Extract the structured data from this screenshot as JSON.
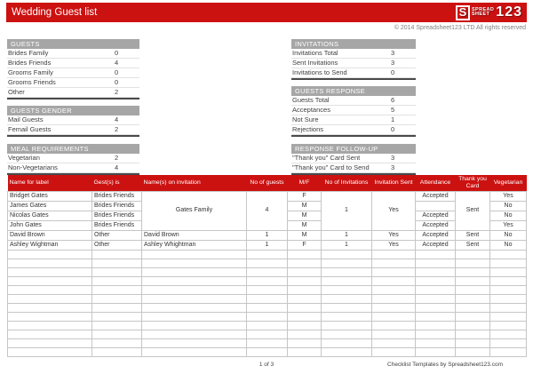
{
  "header": {
    "title": "Wedding Guest list",
    "logo": {
      "s": "S",
      "spread": "SPREAD",
      "sheet": "SHEET",
      "num": "123"
    },
    "copyright": "© 2014 Spreadsheet123 LTD All rights reserved"
  },
  "colors": {
    "accent_red": "#cc1111",
    "section_gray": "#a6a6a6"
  },
  "summary_left": [
    {
      "title": "GUESTS",
      "rows": [
        {
          "label": "Brides Family",
          "value": "0"
        },
        {
          "label": "Brides Friends",
          "value": "4"
        },
        {
          "label": "Grooms Family",
          "value": "0"
        },
        {
          "label": "Grooms Friends",
          "value": "0"
        },
        {
          "label": "Other",
          "value": "2"
        }
      ]
    },
    {
      "title": "GUESTS GENDER",
      "rows": [
        {
          "label": "Mail Guests",
          "value": "4"
        },
        {
          "label": "Femail Guests",
          "value": "2"
        }
      ]
    },
    {
      "title": "MEAL REQUIREMENTS",
      "rows": [
        {
          "label": "Vegetarian",
          "value": "2"
        },
        {
          "label": "Non-Vegetarians",
          "value": "4"
        }
      ]
    }
  ],
  "summary_right": [
    {
      "title": "INVITATIONS",
      "rows": [
        {
          "label": "Invitations Total",
          "value": "3"
        },
        {
          "label": "Sent Invitations",
          "value": "3"
        },
        {
          "label": "Invitations to Send",
          "value": "0"
        }
      ]
    },
    {
      "title": "GUESTS RESPONSE",
      "rows": [
        {
          "label": "Guests Total",
          "value": "6"
        },
        {
          "label": "Acceptances",
          "value": "5"
        },
        {
          "label": "Not Sure",
          "value": "1"
        },
        {
          "label": "Rejections",
          "value": "0"
        }
      ]
    },
    {
      "title": "RESPONSE FOLLOW-UP",
      "rows": [
        {
          "label": "\"Thank you\" Card Sent",
          "value": "3"
        },
        {
          "label": "\"Thank you\" Card to Send",
          "value": "3"
        }
      ]
    }
  ],
  "table": {
    "columns": [
      "Name for label",
      "Gest(s) is",
      "Name(s) on invitation",
      "No of guests",
      "M/F",
      "No of Invitations",
      "Invitation Sent",
      "Attendance",
      "Thank you Card",
      "Vegetarian"
    ],
    "rows": {
      "r1": {
        "name": "Bridget Gates",
        "group": "Brides Friends",
        "invitation_name": "Gates Family",
        "guests": "4",
        "mf": "F",
        "invitations": "1",
        "sent": "Yes",
        "attendance": "Accepted",
        "card": "Sent",
        "vegetarian": "Yes"
      },
      "r2": {
        "name": "James Gates",
        "group": "Brides Friends",
        "mf": "M",
        "attendance": "",
        "vegetarian": "No"
      },
      "r3": {
        "name": "Nicolas Gates",
        "group": "Brides Friends",
        "mf": "M",
        "attendance": "Accepted",
        "vegetarian": "No"
      },
      "r4": {
        "name": "John Gates",
        "group": "Brides Friends",
        "mf": "M",
        "attendance": "Accepted",
        "vegetarian": "Yes"
      },
      "r5": {
        "name": "David Brown",
        "group": "Other",
        "invitation_name": "David Brown",
        "guests": "1",
        "mf": "M",
        "invitations": "1",
        "sent": "Yes",
        "attendance": "Accepted",
        "card": "Sent",
        "vegetarian": "No"
      },
      "r6": {
        "name": "Ashley Wightman",
        "group": "Other",
        "invitation_name": "Ashley Whightman",
        "guests": "1",
        "mf": "F",
        "invitations": "1",
        "sent": "Yes",
        "attendance": "Accepted",
        "card": "Sent",
        "vegetarian": "No"
      }
    }
  },
  "footer": {
    "page": "1 of 3",
    "credit": "Checklist Templates by Spreadsheet123.com"
  }
}
